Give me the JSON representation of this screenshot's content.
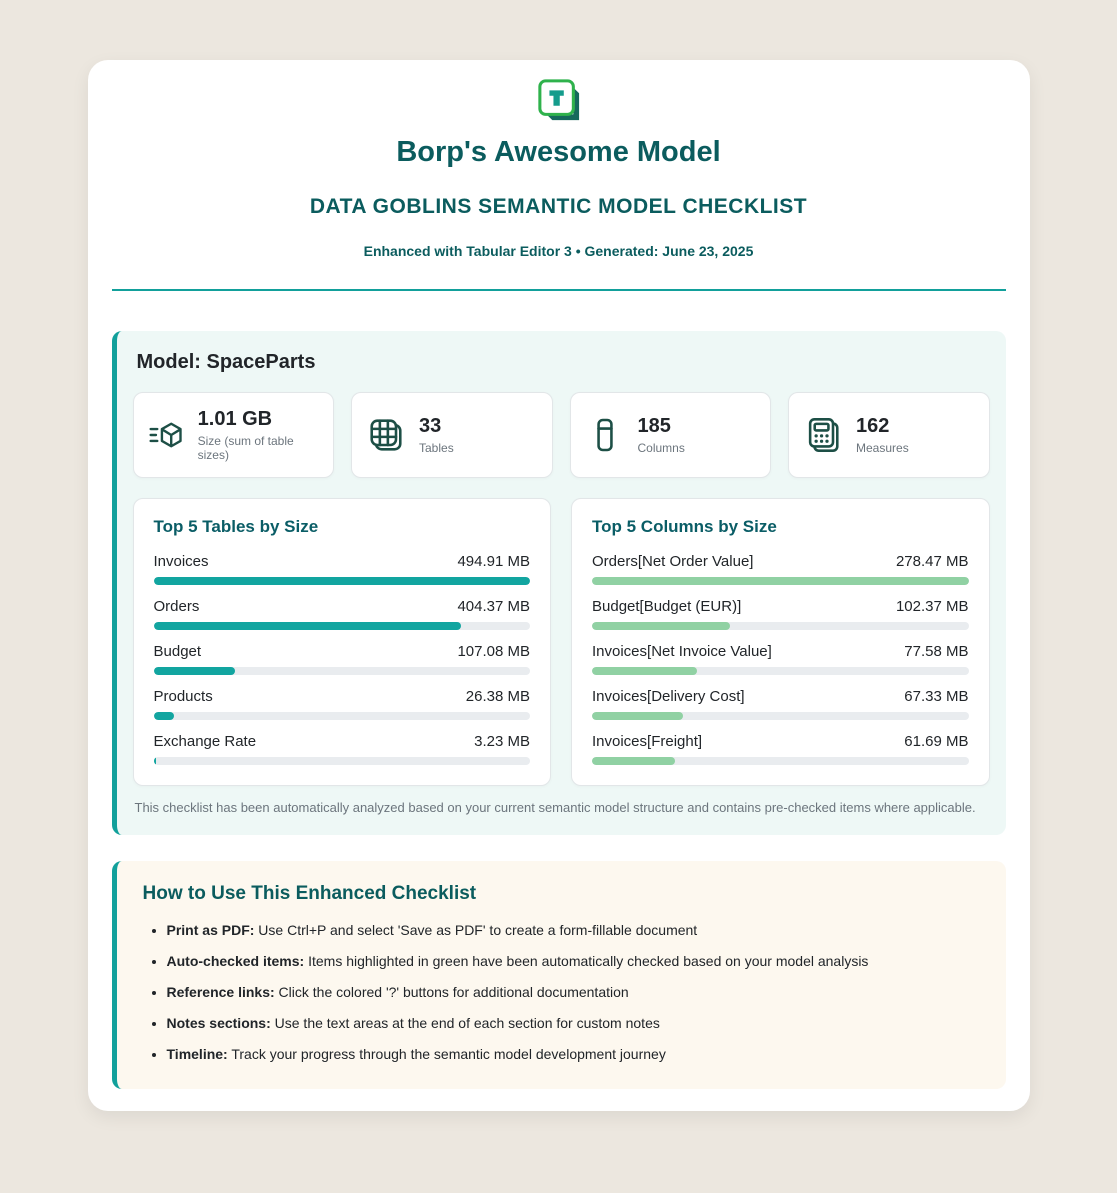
{
  "header": {
    "title": "Borp's Awesome Model",
    "subtitle": "DATA GOBLINS SEMANTIC MODEL CHECKLIST",
    "meta": "Enhanced with Tabular Editor 3 • Generated: June 23, 2025"
  },
  "colors": {
    "accent_teal": "#12a09b",
    "dark_teal_heading": "#0b5c5e",
    "chart_title_teal": "#0a5d66",
    "bar_teal": "#12a5a0",
    "bar_green": "#90d1a3",
    "bar_track": "#e9ecef",
    "panel_mint": "#eef8f6",
    "panel_cream": "#fdf8ef",
    "icon_dark_green": "#1d4f46",
    "logo_green": "#2fb24c",
    "logo_teal": "#149c8c",
    "muted_gray": "#6c757d",
    "page_background": "#ece7df"
  },
  "model_panel": {
    "heading": "Model: SpaceParts",
    "stats": [
      {
        "icon": "size-cube-icon",
        "value": "1.01 GB",
        "label": "Size (sum of table sizes)"
      },
      {
        "icon": "tables-grid-icon",
        "value": "33",
        "label": "Tables"
      },
      {
        "icon": "column-icon",
        "value": "185",
        "label": "Columns"
      },
      {
        "icon": "calculator-icon",
        "value": "162",
        "label": "Measures"
      }
    ],
    "note": "This checklist has been automatically analyzed based on your current semantic model structure and contains pre-checked items where applicable."
  },
  "chart_data": [
    {
      "type": "bar",
      "orientation": "horizontal",
      "title": "Top 5 Tables by Size",
      "unit": "MB",
      "bar_color": "#12a5a0",
      "xlim": [
        0,
        494.91
      ],
      "categories": [
        "Invoices",
        "Orders",
        "Budget",
        "Products",
        "Exchange Rate"
      ],
      "values": [
        494.91,
        404.37,
        107.08,
        26.38,
        3.23
      ],
      "value_labels": [
        "494.91 MB",
        "404.37 MB",
        "107.08 MB",
        "26.38 MB",
        "3.23 MB"
      ]
    },
    {
      "type": "bar",
      "orientation": "horizontal",
      "title": "Top 5 Columns by Size",
      "unit": "MB",
      "bar_color": "#90d1a3",
      "xlim": [
        0,
        278.47
      ],
      "categories": [
        "Orders[Net Order Value]",
        "Budget[Budget (EUR)]",
        "Invoices[Net Invoice Value]",
        "Invoices[Delivery Cost]",
        "Invoices[Freight]"
      ],
      "values": [
        278.47,
        102.37,
        77.58,
        67.33,
        61.69
      ],
      "value_labels": [
        "278.47 MB",
        "102.37 MB",
        "77.58 MB",
        "67.33 MB",
        "61.69 MB"
      ]
    }
  ],
  "how_to": {
    "heading": "How to Use This Enhanced Checklist",
    "items": [
      {
        "lead": "Print as PDF:",
        "text": " Use Ctrl+P and select 'Save as PDF' to create a form-fillable document"
      },
      {
        "lead": "Auto-checked items:",
        "text": " Items highlighted in green have been automatically checked based on your model analysis"
      },
      {
        "lead": "Reference links:",
        "text": " Click the colored '?' buttons for additional documentation"
      },
      {
        "lead": "Notes sections:",
        "text": " Use the text areas at the end of each section for custom notes"
      },
      {
        "lead": "Timeline:",
        "text": " Track your progress through the semantic model development journey"
      }
    ]
  }
}
